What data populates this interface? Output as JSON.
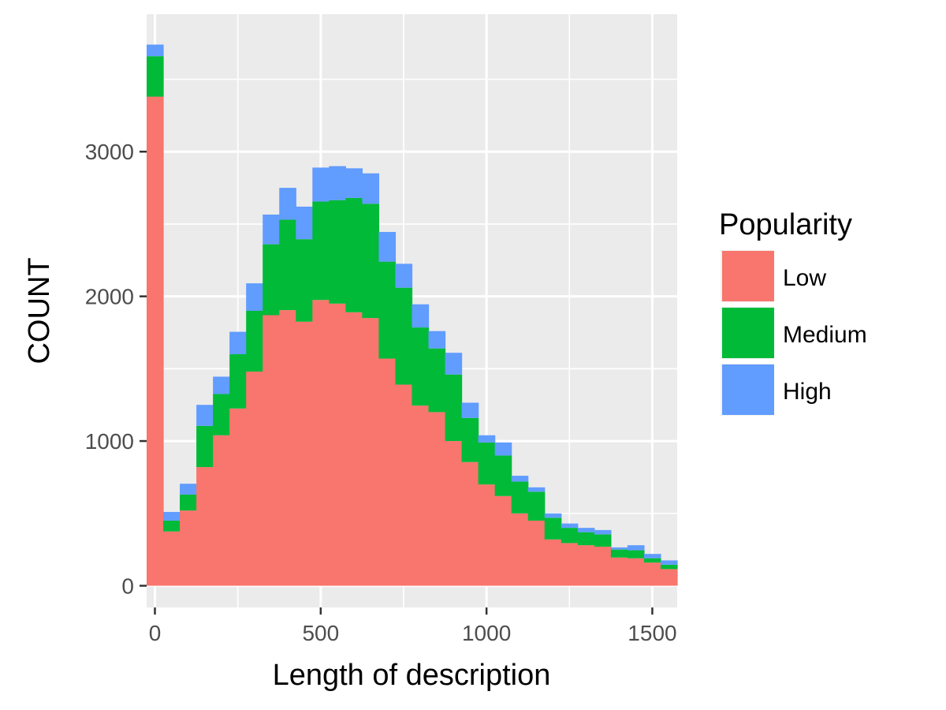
{
  "chart_data": {
    "type": "bar",
    "stacked": true,
    "bin_width": 50,
    "xlabel": "Length of description",
    "ylabel": "COUNT",
    "xlim": [
      -25,
      1575
    ],
    "ylim": [
      -150,
      3950
    ],
    "x_ticks": [
      0,
      500,
      1000,
      1500
    ],
    "x_tick_labels": [
      "0",
      "500",
      "1000",
      "1500"
    ],
    "y_ticks": [
      0,
      1000,
      2000,
      3000
    ],
    "y_tick_labels": [
      "0",
      "1000",
      "2000",
      "3000"
    ],
    "grid": true,
    "legend": {
      "title": "Popularity",
      "position": "right",
      "items": [
        {
          "label": "Low",
          "color": "#F8766D"
        },
        {
          "label": "Medium",
          "color": "#00BA38"
        },
        {
          "label": "High",
          "color": "#619CFF"
        }
      ]
    },
    "panel_background": "#EBEBEB",
    "grid_color": "#FFFFFF",
    "x": [
      0,
      50,
      100,
      150,
      200,
      250,
      300,
      350,
      400,
      450,
      500,
      550,
      600,
      650,
      700,
      750,
      800,
      850,
      900,
      950,
      1000,
      1050,
      1100,
      1150,
      1200,
      1250,
      1300,
      1350,
      1400,
      1450,
      1500,
      1550
    ],
    "series": [
      {
        "name": "Low",
        "color": "#F8766D",
        "values": [
          3380,
          375,
          520,
          820,
          1040,
          1225,
          1480,
          1870,
          1905,
          1825,
          1975,
          1950,
          1890,
          1850,
          1570,
          1390,
          1245,
          1200,
          1000,
          855,
          700,
          620,
          500,
          450,
          320,
          295,
          280,
          270,
          195,
          190,
          160,
          115
        ]
      },
      {
        "name": "Medium",
        "color": "#00BA38",
        "values": [
          280,
          75,
          110,
          285,
          285,
          375,
          420,
          490,
          625,
          570,
          680,
          715,
          790,
          790,
          670,
          670,
          540,
          440,
          460,
          305,
          290,
          280,
          220,
          200,
          150,
          105,
          90,
          85,
          55,
          55,
          30,
          30
        ]
      },
      {
        "name": "High",
        "color": "#619CFF",
        "values": [
          80,
          60,
          75,
          145,
          120,
          155,
          190,
          205,
          220,
          225,
          235,
          235,
          205,
          210,
          205,
          165,
          160,
          120,
          150,
          105,
          50,
          90,
          40,
          30,
          30,
          30,
          30,
          30,
          15,
          35,
          30,
          30
        ]
      }
    ]
  }
}
